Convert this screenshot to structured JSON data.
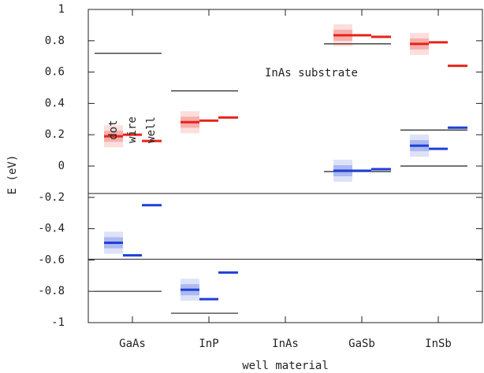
{
  "chart_data": {
    "type": "levels",
    "xlabel": "well material",
    "ylabel": "E (eV)",
    "annotation": "InAs substrate",
    "categories": [
      "GaAs",
      "InP",
      "InAs",
      "GaSb",
      "InSb"
    ],
    "series": [
      {
        "name": "dot",
        "electron_values": [
          0.19,
          0.28,
          null,
          0.835,
          0.78
        ],
        "hole_values": [
          -0.49,
          -0.79,
          null,
          -0.03,
          0.13
        ]
      },
      {
        "name": "wire",
        "electron_values": [
          0.2,
          0.29,
          null,
          0.835,
          0.79
        ],
        "hole_values": [
          -0.57,
          -0.85,
          null,
          -0.03,
          0.11
        ]
      },
      {
        "name": "well",
        "electron_values": [
          0.16,
          0.31,
          null,
          0.825,
          0.64
        ],
        "hole_values": [
          -0.25,
          -0.68,
          null,
          -0.02,
          0.245
        ]
      }
    ],
    "electron_color": "#e8231a",
    "hole_color": "#1e3fd8",
    "band_edges": {
      "conduction": [
        0.72,
        0.48,
        null,
        0.78,
        0.23
      ],
      "valence": [
        -0.8,
        -0.94,
        null,
        -0.035,
        0
      ]
    },
    "dividers": [
      -0.175,
      -0.595
    ],
    "ylim": [
      -1,
      1
    ],
    "yticks": [
      1,
      0.8,
      0.6,
      0.4,
      0.2,
      0,
      -0.2,
      -0.4,
      -0.6,
      -0.8,
      -1
    ]
  }
}
